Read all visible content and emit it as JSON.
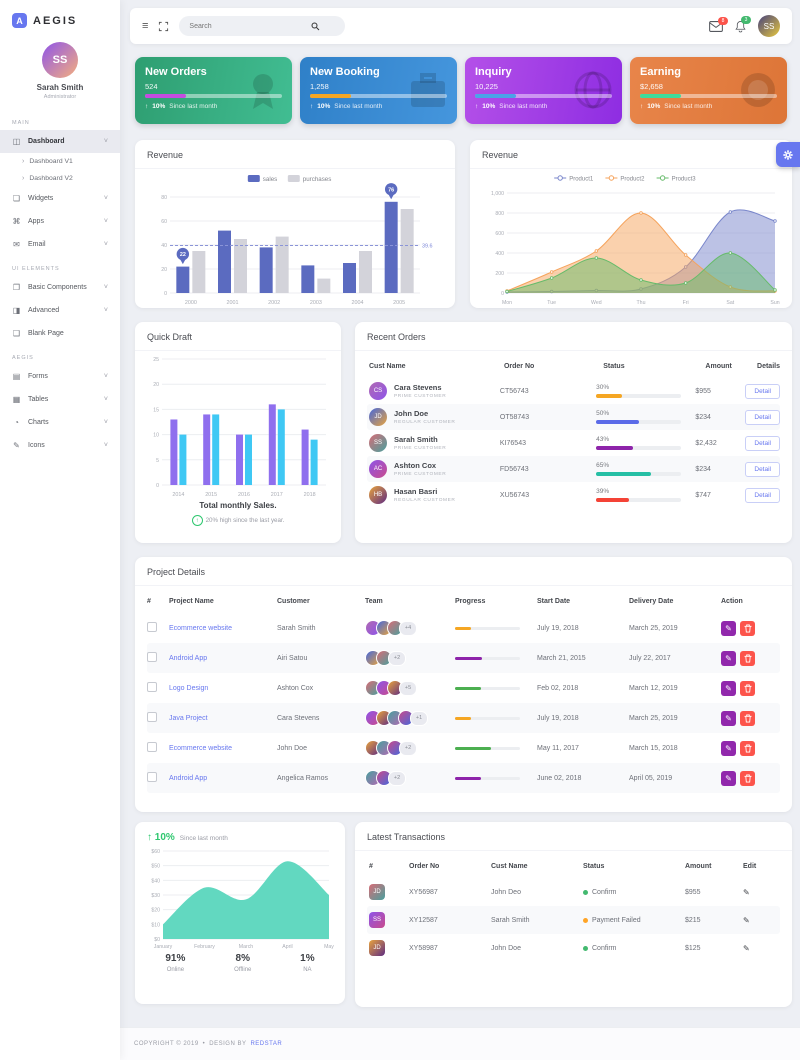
{
  "brand": {
    "name": "AEGIS"
  },
  "user": {
    "name": "Sarah Smith",
    "role": "Administrator"
  },
  "sidebar": {
    "icon_glyphs": {
      "dashboard": "◫",
      "widgets": "❏",
      "apps": "⌘",
      "email": "✉",
      "basic": "❐",
      "advanced": "◨",
      "blank": "❑",
      "forms": "▤",
      "tables": "▦",
      "charts": "◔",
      "icons": "✎"
    },
    "sections": [
      {
        "label": "MAIN",
        "items": [
          {
            "label": "Dashboard",
            "icon": "dashboard",
            "active": true,
            "chevron": true,
            "children": [
              "Dashboard V1",
              "Dashboard V2"
            ]
          },
          {
            "label": "Widgets",
            "icon": "widgets",
            "chevron": true
          },
          {
            "label": "Apps",
            "icon": "apps",
            "chevron": true
          },
          {
            "label": "Email",
            "icon": "email",
            "chevron": true
          }
        ]
      },
      {
        "label": "UI ELEMENTS",
        "items": [
          {
            "label": "Basic Components",
            "icon": "basic",
            "chevron": true
          },
          {
            "label": "Advanced",
            "icon": "advanced",
            "chevron": true
          },
          {
            "label": "Blank Page",
            "icon": "blank"
          }
        ]
      },
      {
        "label": "AEGIS",
        "items": [
          {
            "label": "Forms",
            "icon": "forms",
            "chevron": true
          },
          {
            "label": "Tables",
            "icon": "tables",
            "chevron": true
          },
          {
            "label": "Charts",
            "icon": "charts",
            "chevron": true
          },
          {
            "label": "Icons",
            "icon": "icons",
            "chevron": true
          }
        ]
      }
    ]
  },
  "topbar": {
    "search_placeholder": "Search",
    "mail_badge": "8",
    "bell_badge": "3"
  },
  "stat_cards": [
    {
      "title": "New Orders",
      "value": "524",
      "change": "10%",
      "note": "Since last month",
      "progress": 30,
      "bar_color": "#c44ce0",
      "bg_from": "#2e9e71",
      "bg_to": "#41bd92",
      "icon": "award"
    },
    {
      "title": "New Booking",
      "value": "1,258",
      "change": "10%",
      "note": "Since last month",
      "progress": 30,
      "bar_color": "#f5a623",
      "bg_from": "#2f80c8",
      "bg_to": "#4596dd",
      "icon": "briefcase"
    },
    {
      "title": "Inquiry",
      "value": "10,225",
      "change": "10%",
      "note": "Since last month",
      "progress": 30,
      "bar_color": "#4aa3e8",
      "bg_from": "#b450e8",
      "bg_to": "#8e2de2",
      "icon": "globe"
    },
    {
      "title": "Earning",
      "value": "$2,658",
      "change": "10%",
      "note": "Since last month",
      "progress": 30,
      "bar_color": "#3edc9b",
      "bg_from": "#e8854a",
      "bg_to": "#dd7537",
      "icon": "coin"
    }
  ],
  "cards": {
    "revenue_bar_title": "Revenue",
    "revenue_area_title": "Revenue",
    "quick_draft_title": "Quick Draft",
    "recent_orders_title": "Recent Orders",
    "project_details_title": "Project Details",
    "transactions_title": "Latest Transactions"
  },
  "chart_data": [
    {
      "id": "revenue-bar",
      "type": "bar",
      "title": "Revenue",
      "categories": [
        "2000",
        "2001",
        "2002",
        "2003",
        "2004",
        "2005"
      ],
      "series": [
        {
          "name": "sales",
          "color": "#5b6bc0",
          "values": [
            22,
            52,
            38,
            23,
            25,
            76
          ]
        },
        {
          "name": "purchases",
          "color": "#d3d3da",
          "values": [
            35,
            45,
            47,
            12,
            35,
            70
          ]
        }
      ],
      "ylim": [
        0,
        80
      ],
      "yticks": [
        0,
        20,
        40,
        60,
        80
      ],
      "avg_line": 39.6,
      "avg_label": "39.6",
      "markers": [
        {
          "series": 0,
          "index": 0,
          "label": "22"
        },
        {
          "series": 0,
          "index": 5,
          "label": "76"
        }
      ],
      "legend_position": "top",
      "grid": true
    },
    {
      "id": "revenue-area",
      "type": "area",
      "title": "Revenue",
      "x": [
        "Mon",
        "Tue",
        "Wed",
        "Thu",
        "Fri",
        "Sat",
        "Sun"
      ],
      "series": [
        {
          "name": "Product1",
          "color": "#7986cb",
          "values": [
            10,
            15,
            25,
            40,
            260,
            810,
            720
          ]
        },
        {
          "name": "Product2",
          "color": "#f5a35c",
          "values": [
            20,
            210,
            420,
            800,
            380,
            60,
            20
          ]
        },
        {
          "name": "Product3",
          "color": "#66bb6a",
          "values": [
            15,
            150,
            350,
            130,
            100,
            400,
            30
          ]
        }
      ],
      "ylim": [
        0,
        1000
      ],
      "yticks": [
        0,
        200,
        400,
        600,
        800,
        1000
      ],
      "legend_position": "top",
      "grid": true
    },
    {
      "id": "quick-draft",
      "type": "bar",
      "title": "Quick Draft",
      "categories": [
        "2014",
        "2015",
        "2016",
        "2017",
        "2018"
      ],
      "series": [
        {
          "name": "series1",
          "color": "#8f6fee",
          "values": [
            13,
            14,
            10,
            16,
            11
          ]
        },
        {
          "name": "series2",
          "color": "#3fc8f4",
          "values": [
            10,
            14,
            10,
            15,
            9
          ]
        }
      ],
      "ylim": [
        0,
        25
      ],
      "yticks": [
        0,
        5,
        10,
        15,
        20,
        25
      ],
      "grid": true
    },
    {
      "id": "monthly-sales",
      "type": "area",
      "title": "Total monthly Sales",
      "x": [
        "January",
        "February",
        "March",
        "April",
        "May"
      ],
      "series": [
        {
          "name": "sales",
          "color": "#5ad6bd",
          "values": [
            10,
            35,
            27,
            53,
            30
          ]
        }
      ],
      "ylim": [
        0,
        60
      ],
      "yticks": [
        0,
        10,
        20,
        30,
        40,
        50,
        60
      ],
      "ytick_prefix": "$",
      "grid": true
    }
  ],
  "quick_draft_caption": {
    "title": "Total monthly Sales.",
    "sub": "20% high since the last year."
  },
  "recent_orders": {
    "headers": [
      "Cust Name",
      "Order No",
      "Status",
      "Amount",
      "Details"
    ],
    "button": "Detail",
    "rows": [
      {
        "name": "Cara Stevens",
        "type": "PRIME CUSTOMER",
        "order": "CT56743",
        "pct": 30,
        "color": "#f5a623",
        "amount": "$955"
      },
      {
        "name": "John Doe",
        "type": "REGULAR CUSTOMER",
        "order": "OT58743",
        "pct": 50,
        "color": "#5b6be8",
        "amount": "$234"
      },
      {
        "name": "Sarah Smith",
        "type": "PRIME CUSTOMER",
        "order": "KI76543",
        "pct": 43,
        "color": "#8e24aa",
        "amount": "$2,432"
      },
      {
        "name": "Ashton Cox",
        "type": "PRIME CUSTOMER",
        "order": "FD56743",
        "pct": 65,
        "color": "#26bfa5",
        "amount": "$234"
      },
      {
        "name": "Hasan Basri",
        "type": "REGULAR CUSTOMER",
        "order": "XU56743",
        "pct": 39,
        "color": "#f44336",
        "amount": "$747"
      }
    ]
  },
  "projects": {
    "headers": [
      "#",
      "Project Name",
      "Customer",
      "Team",
      "Progress",
      "Start Date",
      "Delivery Date",
      "Action"
    ],
    "rows": [
      {
        "name": "Ecommerce website",
        "customer": "Sarah Smith",
        "avatars": 3,
        "extra": "+4",
        "pct": 25,
        "color": "#f5a623",
        "start": "July 19, 2018",
        "delivery": "March 25, 2019"
      },
      {
        "name": "Android App",
        "customer": "Airi Satou",
        "avatars": 2,
        "extra": "+2",
        "pct": 42,
        "color": "#8e24aa",
        "start": "March 21, 2015",
        "delivery": "July 22, 2017"
      },
      {
        "name": "Logo Design",
        "customer": "Ashton Cox",
        "avatars": 3,
        "extra": "+5",
        "pct": 40,
        "color": "#4caf50",
        "start": "Feb 02, 2018",
        "delivery": "March 12, 2019"
      },
      {
        "name": "Java Project",
        "customer": "Cara Stevens",
        "avatars": 4,
        "extra": "+1",
        "pct": 25,
        "color": "#f5a623",
        "start": "July 19, 2018",
        "delivery": "March 25, 2019"
      },
      {
        "name": "Ecommerce website",
        "customer": "John Doe",
        "avatars": 3,
        "extra": "+2",
        "pct": 55,
        "color": "#4caf50",
        "start": "May 11, 2017",
        "delivery": "March 15, 2018"
      },
      {
        "name": "Android App",
        "customer": "Angelica Ramos",
        "avatars": 2,
        "extra": "+2",
        "pct": 40,
        "color": "#8e24aa",
        "start": "June 02, 2018",
        "delivery": "April 05, 2019"
      }
    ]
  },
  "monthly_summary": {
    "change": "10%",
    "note": "Since last month",
    "stats": [
      {
        "value": "91%",
        "label": "Online"
      },
      {
        "value": "8%",
        "label": "Offline"
      },
      {
        "value": "1%",
        "label": "NA"
      }
    ]
  },
  "transactions": {
    "headers": [
      "#",
      "Order No",
      "Cust Name",
      "Status",
      "Amount",
      "Edit"
    ],
    "rows": [
      {
        "order": "XY56987",
        "name": "John Deo",
        "status": "Confirm",
        "status_color": "#43b96f",
        "amount": "$955"
      },
      {
        "order": "XY12587",
        "name": "Sarah Smith",
        "status": "Payment Failed",
        "status_color": "#ffa426",
        "amount": "$215"
      },
      {
        "order": "XY58987",
        "name": "John Doe",
        "status": "Confirm",
        "status_color": "#43b96f",
        "amount": "$125"
      }
    ]
  },
  "footer": {
    "copyright": "COPYRIGHT © 2019",
    "separator": "•",
    "design": "DESIGN BY",
    "brand_link": "REDSTAR"
  }
}
